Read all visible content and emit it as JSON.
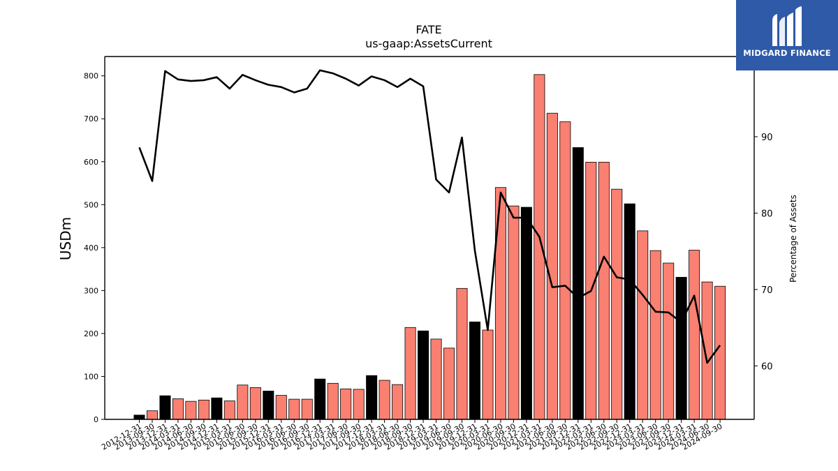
{
  "chart_data": {
    "type": "bar",
    "title": "FATE",
    "subtitle": "us-gaap:AssetsCurrent",
    "ylabel": "USDm",
    "y2label": "Percentage of Assets",
    "ylim": [
      0,
      845
    ],
    "y2lim": [
      53,
      100.5
    ],
    "yticks": [
      0,
      100,
      200,
      300,
      400,
      500,
      600,
      700,
      800
    ],
    "y2ticks": [
      60,
      70,
      80,
      90
    ],
    "categories": [
      "2012-12-31",
      "2013-09-30",
      "2013-12-31",
      "2014-03-31",
      "2014-06-30",
      "2014-09-30",
      "2014-12-31",
      "2015-03-31",
      "2015-06-30",
      "2015-09-30",
      "2015-12-31",
      "2016-03-31",
      "2016-06-30",
      "2016-09-30",
      "2016-12-31",
      "2017-03-31",
      "2017-06-30",
      "2017-09-30",
      "2017-12-31",
      "2018-03-31",
      "2018-06-30",
      "2018-09-30",
      "2018-12-31",
      "2019-03-31",
      "2019-06-30",
      "2019-09-30",
      "2019-12-31",
      "2020-03-31",
      "2020-06-30",
      "2020-09-30",
      "2020-12-31",
      "2021-03-31",
      "2021-06-30",
      "2021-09-30",
      "2021-12-31",
      "2022-03-31",
      "2022-06-30",
      "2022-09-30",
      "2022-12-31",
      "2023-03-31",
      "2023-06-30",
      "2023-09-30",
      "2023-12-31",
      "2024-03-31",
      "2024-06-30",
      "2024-09-30"
    ],
    "series": [
      {
        "kind": "bar",
        "values": [
          10,
          20,
          55,
          48,
          42,
          45,
          50,
          43,
          80,
          74,
          66,
          56,
          47,
          47,
          94,
          84,
          71,
          70,
          102,
          91,
          81,
          214,
          206,
          187,
          166,
          305,
          227,
          208,
          540,
          497,
          494,
          803,
          713,
          693,
          633,
          599,
          599,
          536,
          502,
          439,
          393,
          364,
          331,
          394,
          320,
          310
        ],
        "highlight": [
          true,
          false,
          true,
          false,
          false,
          false,
          true,
          false,
          false,
          false,
          true,
          false,
          false,
          false,
          true,
          false,
          false,
          false,
          true,
          false,
          false,
          false,
          true,
          false,
          false,
          false,
          true,
          false,
          false,
          false,
          true,
          false,
          false,
          false,
          true,
          false,
          false,
          false,
          true,
          false,
          false,
          false,
          true,
          false,
          false,
          false
        ]
      },
      {
        "kind": "line",
        "values": [
          88.6,
          84.2,
          98.6,
          97.5,
          97.3,
          97.4,
          97.8,
          96.3,
          98.1,
          97.4,
          96.8,
          96.5,
          95.8,
          96.3,
          98.7,
          98.3,
          97.6,
          96.7,
          97.9,
          97.4,
          96.5,
          97.6,
          96.6,
          84.4,
          82.7,
          89.9,
          75.1,
          64.7,
          82.7,
          79.4,
          79.4,
          76.9,
          70.3,
          70.5,
          68.9,
          69.8,
          74.3,
          71.6,
          71.3,
          69.3,
          67.1,
          67.0,
          65.7,
          69.2,
          60.4,
          62.7
        ]
      }
    ],
    "colors": {
      "bar": "#fa8072",
      "bar_highlight": "#000000",
      "line": "#000000"
    },
    "grid": false
  },
  "logo": {
    "text": "MIDGARD FINANCE"
  }
}
